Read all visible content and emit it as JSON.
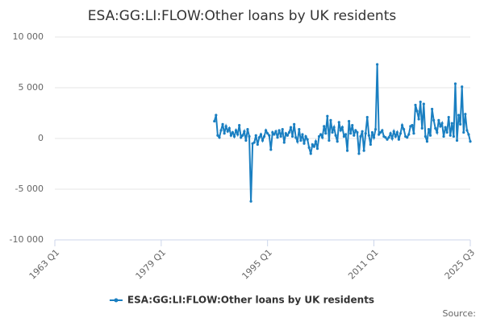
{
  "chart_data": {
    "type": "line",
    "title": "ESA:GG:LI:FLOW:Other loans by UK residents",
    "source": "Source:",
    "xlim": [
      "1963 Q1",
      "2025 Q3"
    ],
    "xticks": [
      "1963 Q1",
      "1979 Q1",
      "1995 Q1",
      "2011 Q1",
      "2025 Q3"
    ],
    "ylim": [
      -10000,
      10000
    ],
    "yticks": [
      {
        "value": -10000,
        "label": "-10 000"
      },
      {
        "value": -5000,
        "label": "-5 000"
      },
      0,
      {
        "value": 5000,
        "label": "5 000"
      },
      {
        "value": 10000,
        "label": "10 000"
      }
    ],
    "grid": true,
    "legend": "bottom",
    "series": [
      {
        "name": "ESA:GG:LI:FLOW:Other loans by UK residents",
        "color": "#1a7fc1",
        "x": [
          "1987 Q1",
          "1987 Q2",
          "1987 Q3",
          "1987 Q4",
          "1988 Q1",
          "1988 Q2",
          "1988 Q3",
          "1988 Q4",
          "1989 Q1",
          "1989 Q2",
          "1989 Q3",
          "1989 Q4",
          "1990 Q1",
          "1990 Q2",
          "1990 Q3",
          "1990 Q4",
          "1991 Q1",
          "1991 Q2",
          "1991 Q3",
          "1991 Q4",
          "1992 Q1",
          "1992 Q2",
          "1992 Q3",
          "1992 Q4",
          "1993 Q1",
          "1993 Q2",
          "1993 Q3",
          "1993 Q4",
          "1994 Q1",
          "1994 Q2",
          "1994 Q3",
          "1994 Q4",
          "1995 Q1",
          "1995 Q2",
          "1995 Q3",
          "1995 Q4",
          "1996 Q1",
          "1996 Q2",
          "1996 Q3",
          "1996 Q4",
          "1997 Q1",
          "1997 Q2",
          "1997 Q3",
          "1997 Q4",
          "1998 Q1",
          "1998 Q2",
          "1998 Q3",
          "1998 Q4",
          "1999 Q1",
          "1999 Q2",
          "1999 Q3",
          "1999 Q4",
          "2000 Q1",
          "2000 Q2",
          "2000 Q3",
          "2000 Q4",
          "2001 Q1",
          "2001 Q2",
          "2001 Q3",
          "2001 Q4",
          "2002 Q1",
          "2002 Q2",
          "2002 Q3",
          "2002 Q4",
          "2003 Q1",
          "2003 Q2",
          "2003 Q3",
          "2003 Q4",
          "2004 Q1",
          "2004 Q2",
          "2004 Q3",
          "2004 Q4",
          "2005 Q1",
          "2005 Q2",
          "2005 Q3",
          "2005 Q4",
          "2006 Q1",
          "2006 Q2",
          "2006 Q3",
          "2006 Q4",
          "2007 Q1",
          "2007 Q2",
          "2007 Q3",
          "2007 Q4",
          "2008 Q1",
          "2008 Q2",
          "2008 Q3",
          "2008 Q4",
          "2009 Q1",
          "2009 Q2",
          "2009 Q3",
          "2009 Q4",
          "2010 Q1",
          "2010 Q2",
          "2010 Q3",
          "2010 Q4",
          "2011 Q1",
          "2011 Q2",
          "2011 Q3",
          "2011 Q4",
          "2012 Q1",
          "2012 Q2",
          "2012 Q3",
          "2012 Q4",
          "2013 Q1",
          "2013 Q2",
          "2013 Q3",
          "2013 Q4",
          "2014 Q1",
          "2014 Q2",
          "2014 Q3",
          "2014 Q4",
          "2015 Q1",
          "2015 Q2",
          "2015 Q3",
          "2015 Q4",
          "2016 Q1",
          "2016 Q2",
          "2016 Q3",
          "2016 Q4",
          "2017 Q1",
          "2017 Q2",
          "2017 Q3",
          "2017 Q4",
          "2018 Q1",
          "2018 Q2",
          "2018 Q3",
          "2018 Q4",
          "2019 Q1",
          "2019 Q2",
          "2019 Q3",
          "2019 Q4",
          "2020 Q1",
          "2020 Q2",
          "2020 Q3",
          "2020 Q4",
          "2021 Q1",
          "2021 Q2",
          "2021 Q3",
          "2021 Q4",
          "2022 Q1",
          "2022 Q2",
          "2022 Q3",
          "2022 Q4",
          "2023 Q1",
          "2023 Q2",
          "2023 Q3",
          "2023 Q4",
          "2024 Q1",
          "2024 Q2",
          "2024 Q3",
          "2024 Q4",
          "2025 Q1",
          "2025 Q2",
          "2025 Q3"
        ],
        "values": [
          1700,
          2300,
          300,
          100,
          800,
          1400,
          500,
          1200,
          700,
          1000,
          300,
          600,
          200,
          800,
          400,
          1300,
          100,
          300,
          700,
          -200,
          900,
          200,
          -6200,
          -500,
          -400,
          300,
          -600,
          100,
          400,
          -200,
          200,
          800,
          500,
          300,
          -1100,
          600,
          400,
          700,
          100,
          800,
          200,
          900,
          -400,
          500,
          300,
          600,
          1100,
          200,
          1400,
          100,
          -300,
          900,
          -200,
          400,
          -500,
          200,
          -100,
          -900,
          -1500,
          -600,
          -800,
          -300,
          -1000,
          200,
          400,
          100,
          1200,
          500,
          2200,
          -200,
          1800,
          600,
          1100,
          300,
          -300,
          1600,
          800,
          1100,
          200,
          400,
          -1200,
          1700,
          500,
          1300,
          300,
          800,
          600,
          -1500,
          200,
          700,
          -1200,
          500,
          2100,
          300,
          -600,
          600,
          100,
          900,
          7300,
          400,
          600,
          800,
          200,
          100,
          -100,
          100,
          500,
          0,
          700,
          200,
          600,
          -100,
          500,
          1300,
          900,
          200,
          100,
          400,
          1200,
          1300,
          500,
          3300,
          2700,
          1900,
          3600,
          1000,
          3400,
          200,
          -300,
          900,
          300,
          2900,
          1800,
          1000,
          600,
          1800,
          1200,
          1500,
          200,
          1100,
          600,
          2100,
          300,
          1500,
          200,
          5400,
          -200,
          2300,
          1400,
          5100,
          600,
          2400,
          800,
          400,
          -300
        ]
      }
    ]
  }
}
